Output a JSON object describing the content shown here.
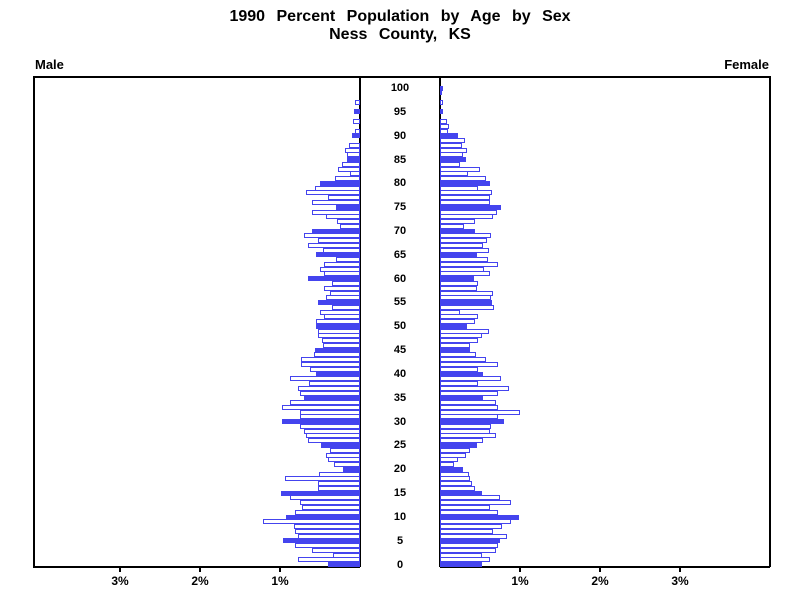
{
  "header": {
    "title": "1990 Percent Population by Age by Sex",
    "subtitle": "Ness County, KS"
  },
  "axes": {
    "left_side_label": "Male",
    "right_side_label": "Female",
    "x_tick_labels": [
      "1%",
      "2%",
      "3%"
    ],
    "x_tick_values_percent": [
      1,
      2,
      3
    ],
    "age_tick_labels": [
      "0",
      "5",
      "10",
      "15",
      "20",
      "25",
      "30",
      "35",
      "40",
      "45",
      "50",
      "55",
      "60",
      "65",
      "70",
      "75",
      "80",
      "85",
      "90",
      "95",
      "100"
    ],
    "age_tick_step": 5
  },
  "colors": {
    "bar_fill_highlight": "#4444ee",
    "bar_outline": "#4444ee",
    "bar_fill_regular": "#ffffff",
    "axis_color": "#000000",
    "background": "#ffffff"
  },
  "chart_data": {
    "type": "bar",
    "subtype": "population-pyramid",
    "title": "1990 Percent Population by Age by Sex",
    "subtitle": "Ness County, KS",
    "unit": "percent of total population",
    "orientation": "horizontal, male left / female right, single-year-of-age bars",
    "highlight_rule": "every age divisible by 5 is drawn as a solid filled bar; other ages are outlined white bars",
    "xlim_each_side": [
      0,
      3.5
    ],
    "ages": "index of each value below equals age in years, 0 through 100",
    "series": [
      {
        "name": "Male",
        "values": [
          0.4,
          0.77,
          0.34,
          0.6,
          0.81,
          0.96,
          0.77,
          0.81,
          0.83,
          1.21,
          0.93,
          0.81,
          0.72,
          0.75,
          0.88,
          0.99,
          0.53,
          0.53,
          0.94,
          0.51,
          0.21,
          0.33,
          0.4,
          0.43,
          0.38,
          0.49,
          0.65,
          0.67,
          0.7,
          0.75,
          0.97,
          0.75,
          0.75,
          0.98,
          0.88,
          0.7,
          0.75,
          0.77,
          0.64,
          0.87,
          0.55,
          0.63,
          0.74,
          0.74,
          0.58,
          0.56,
          0.46,
          0.48,
          0.53,
          0.53,
          0.55,
          0.55,
          0.45,
          0.5,
          0.35,
          0.52,
          0.42,
          0.38,
          0.45,
          0.35,
          0.65,
          0.45,
          0.5,
          0.45,
          0.3,
          0.55,
          0.46,
          0.65,
          0.53,
          0.7,
          0.6,
          0.25,
          0.29,
          0.42,
          0.6,
          0.3,
          0.6,
          0.4,
          0.67,
          0.56,
          0.5,
          0.31,
          0.13,
          0.27,
          0.22,
          0.16,
          0.16,
          0.19,
          0.14,
          0.0,
          0.1,
          0.06,
          0.0,
          0.09,
          0.0,
          0.08,
          0.0,
          0.06,
          0.0,
          0.0,
          0.0
        ]
      },
      {
        "name": "Female",
        "values": [
          0.52,
          0.62,
          0.52,
          0.7,
          0.73,
          0.75,
          0.84,
          0.66,
          0.77,
          0.89,
          0.99,
          0.72,
          0.62,
          0.89,
          0.75,
          0.52,
          0.44,
          0.4,
          0.38,
          0.36,
          0.29,
          0.18,
          0.23,
          0.33,
          0.38,
          0.46,
          0.54,
          0.7,
          0.62,
          0.64,
          0.8,
          0.73,
          1.0,
          0.72,
          0.7,
          0.54,
          0.73,
          0.86,
          0.48,
          0.76,
          0.54,
          0.48,
          0.72,
          0.58,
          0.45,
          0.37,
          0.37,
          0.48,
          0.52,
          0.61,
          0.34,
          0.44,
          0.48,
          0.25,
          0.68,
          0.65,
          0.64,
          0.66,
          0.46,
          0.48,
          0.43,
          0.62,
          0.55,
          0.73,
          0.6,
          0.46,
          0.61,
          0.54,
          0.59,
          0.64,
          0.44,
          0.3,
          0.44,
          0.66,
          0.71,
          0.76,
          0.63,
          0.63,
          0.65,
          0.48,
          0.63,
          0.57,
          0.35,
          0.5,
          0.25,
          0.33,
          0.29,
          0.34,
          0.27,
          0.31,
          0.22,
          0.1,
          0.11,
          0.09,
          0.0,
          0.04,
          0.0,
          0.04,
          0.0,
          0.02,
          0.04
        ]
      }
    ],
    "legend_position": "none",
    "grid": false
  }
}
